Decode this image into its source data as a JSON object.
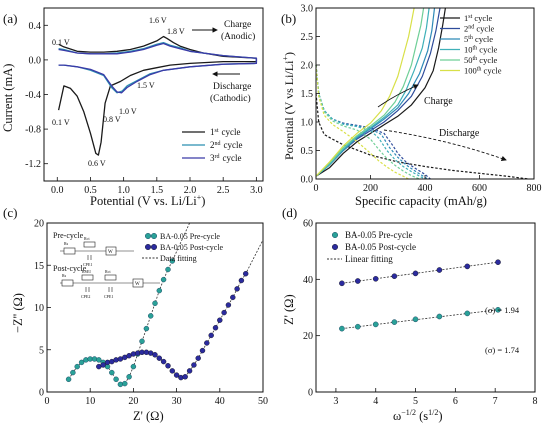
{
  "chart_data": [
    {
      "panel_label": "(a)",
      "type": "line",
      "xlabel": "Potential (V vs. Li/Li+)",
      "ylabel": "Current (mA)",
      "xlim": [
        -0.2,
        3.1
      ],
      "ylim": [
        -1.4,
        0.6
      ],
      "xticks": [
        "0.0",
        "0.5",
        "1.0",
        "1.5",
        "2.0",
        "2.5",
        "3.0"
      ],
      "yticks": [
        "0.4",
        "0.0",
        "-0.4",
        "-0.8",
        "-1.2"
      ],
      "legend": "bottom-right",
      "grid": false,
      "series": [
        {
          "name": "1st cycle",
          "color": "#1a1a1a",
          "x": [
            0.02,
            0.1,
            0.2,
            0.3,
            0.4,
            0.5,
            0.58,
            0.62,
            0.66,
            0.72,
            0.8,
            0.95,
            1.1,
            1.3,
            1.5,
            1.7,
            2.0,
            2.5,
            3.0,
            3.0,
            2.5,
            2.2,
            2.0,
            1.85,
            1.75,
            1.65,
            1.6,
            1.5,
            1.3,
            1.1,
            0.9,
            0.7,
            0.5,
            0.3,
            0.1,
            0.02
          ],
          "y": [
            -0.58,
            -0.3,
            -0.33,
            -0.42,
            -0.6,
            -0.85,
            -1.08,
            -1.1,
            -0.95,
            -0.5,
            -0.3,
            -0.25,
            -0.18,
            -0.12,
            -0.09,
            -0.06,
            -0.04,
            -0.02,
            -0.02,
            0.02,
            0.04,
            0.08,
            0.12,
            0.16,
            0.2,
            0.25,
            0.27,
            0.22,
            0.16,
            0.12,
            0.1,
            0.09,
            0.09,
            0.1,
            0.15,
            0.18
          ]
        },
        {
          "name": "2nd cycle",
          "color": "#2a8fb0",
          "x": [
            0.02,
            0.1,
            0.3,
            0.5,
            0.7,
            0.82,
            0.9,
            0.98,
            1.05,
            1.2,
            1.4,
            1.6,
            2.0,
            2.5,
            3.0,
            3.0,
            2.5,
            2.0,
            1.85,
            1.7,
            1.6,
            1.5,
            1.3,
            1.1,
            0.9,
            0.7,
            0.5,
            0.3,
            0.1,
            0.02
          ],
          "y": [
            -0.06,
            -0.06,
            -0.08,
            -0.12,
            -0.18,
            -0.32,
            -0.38,
            -0.36,
            -0.3,
            -0.24,
            -0.16,
            -0.12,
            -0.08,
            -0.05,
            -0.04,
            0.02,
            0.05,
            0.1,
            0.14,
            0.17,
            0.2,
            0.18,
            0.13,
            0.1,
            0.08,
            0.07,
            0.07,
            0.08,
            0.12,
            0.13
          ]
        },
        {
          "name": "3rd cycle",
          "color": "#3b3aa8",
          "x": [
            0.02,
            0.1,
            0.3,
            0.5,
            0.7,
            0.82,
            0.9,
            0.97,
            1.05,
            1.2,
            1.4,
            1.6,
            2.0,
            2.5,
            3.0,
            3.0,
            2.5,
            2.0,
            1.85,
            1.7,
            1.6,
            1.5,
            1.3,
            1.1,
            0.9,
            0.7,
            0.5,
            0.3,
            0.1,
            0.02
          ],
          "y": [
            -0.06,
            -0.06,
            -0.08,
            -0.11,
            -0.17,
            -0.3,
            -0.37,
            -0.38,
            -0.32,
            -0.25,
            -0.17,
            -0.12,
            -0.08,
            -0.05,
            -0.04,
            0.02,
            0.05,
            0.1,
            0.13,
            0.16,
            0.19,
            0.17,
            0.12,
            0.09,
            0.07,
            0.07,
            0.07,
            0.08,
            0.11,
            0.12
          ]
        }
      ],
      "annotations": [
        "0.1 V",
        "1.6 V",
        "1.8 V",
        "0.1 V",
        "0.6 V",
        "0.8 V",
        "1.0 V",
        "1.5 V",
        "Charge",
        "(Anodic)",
        "Discharge",
        "(Cathodic)"
      ]
    },
    {
      "panel_label": "(b)",
      "type": "line",
      "xlabel": "Specific capacity (mAh/g)",
      "ylabel": "Potential (V vs Li/Li+)",
      "xlim": [
        0,
        800
      ],
      "ylim": [
        0,
        3.0
      ],
      "xticks": [
        "0",
        "200",
        "400",
        "600",
        "800"
      ],
      "yticks": [
        "0.0",
        "0.5",
        "1.0",
        "1.5",
        "2.0",
        "2.5",
        "3.0"
      ],
      "legend": "top-right",
      "grid": false,
      "series": [
        {
          "name": "1st cycle",
          "color": "#1a1a1a",
          "charge": {
            "x": [
              0,
              50,
              100,
              150,
              200,
              250,
              300,
              350,
              400,
              430,
              450,
              465,
              475
            ],
            "y": [
              0.05,
              0.2,
              0.45,
              0.65,
              0.8,
              0.95,
              1.1,
              1.3,
              1.6,
              1.9,
              2.3,
              2.7,
              3.0
            ]
          },
          "discharge": {
            "x": [
              0,
              10,
              30,
              60,
              100,
              200,
              300,
              400,
              500,
              600,
              700,
              780
            ],
            "y": [
              1.5,
              1.0,
              0.78,
              0.7,
              0.6,
              0.42,
              0.3,
              0.22,
              0.15,
              0.1,
              0.05,
              0.0
            ]
          }
        },
        {
          "name": "2nd cycle",
          "color": "#2e4b9b",
          "charge": {
            "x": [
              0,
              50,
              100,
              150,
              200,
              250,
              300,
              350,
              390,
              420,
              440,
              455
            ],
            "y": [
              0.05,
              0.25,
              0.5,
              0.7,
              0.85,
              1.0,
              1.2,
              1.45,
              1.8,
              2.2,
              2.6,
              3.0
            ]
          },
          "discharge": {
            "x": [
              0,
              10,
              30,
              60,
              100,
              150,
              200,
              250,
              280,
              300,
              330,
              360,
              400,
              420
            ],
            "y": [
              2.0,
              1.5,
              1.2,
              1.05,
              0.98,
              0.94,
              0.9,
              0.8,
              0.6,
              0.45,
              0.3,
              0.2,
              0.08,
              0.0
            ]
          }
        },
        {
          "name": "5th cycle",
          "color": "#2f8ab8",
          "charge": {
            "x": [
              0,
              50,
              100,
              150,
              200,
              250,
              300,
              340,
              380,
              410,
              425,
              435
            ],
            "y": [
              0.05,
              0.25,
              0.5,
              0.72,
              0.88,
              1.05,
              1.25,
              1.5,
              1.85,
              2.25,
              2.6,
              3.0
            ]
          },
          "discharge": {
            "x": [
              0,
              10,
              30,
              60,
              100,
              150,
              200,
              240,
              270,
              300,
              330,
              360,
              390,
              410
            ],
            "y": [
              2.0,
              1.5,
              1.2,
              1.05,
              0.97,
              0.93,
              0.88,
              0.78,
              0.55,
              0.38,
              0.25,
              0.15,
              0.06,
              0.0
            ]
          }
        },
        {
          "name": "10th cycle",
          "color": "#3fb0b8",
          "charge": {
            "x": [
              0,
              50,
              100,
              150,
              200,
              250,
              300,
              330,
              360,
              390,
              405,
              415
            ],
            "y": [
              0.05,
              0.25,
              0.52,
              0.74,
              0.9,
              1.08,
              1.3,
              1.55,
              1.9,
              2.3,
              2.65,
              3.0
            ]
          },
          "discharge": {
            "x": [
              0,
              10,
              30,
              60,
              100,
              150,
              200,
              230,
              260,
              290,
              320,
              350,
              380,
              400
            ],
            "y": [
              2.0,
              1.5,
              1.2,
              1.05,
              0.96,
              0.92,
              0.85,
              0.72,
              0.5,
              0.34,
              0.22,
              0.13,
              0.05,
              0.0
            ]
          }
        },
        {
          "name": "50th cycle",
          "color": "#6fcf97",
          "charge": {
            "x": [
              0,
              50,
              100,
              150,
              200,
              250,
              290,
              320,
              350,
              370,
              385,
              395
            ],
            "y": [
              0.05,
              0.28,
              0.55,
              0.76,
              0.93,
              1.12,
              1.35,
              1.62,
              2.0,
              2.4,
              2.7,
              3.0
            ]
          },
          "discharge": {
            "x": [
              0,
              10,
              30,
              60,
              100,
              150,
              200,
              230,
              260,
              290,
              320,
              350,
              380
            ],
            "y": [
              2.0,
              1.5,
              1.18,
              1.02,
              0.93,
              0.86,
              0.7,
              0.52,
              0.36,
              0.24,
              0.14,
              0.06,
              0.0
            ]
          }
        },
        {
          "name": "100th cycle",
          "color": "#d8e048",
          "charge": {
            "x": [
              0,
              50,
              100,
              150,
              200,
              240,
              270,
              300,
              320,
              340,
              350,
              360
            ],
            "y": [
              0.05,
              0.3,
              0.58,
              0.8,
              0.98,
              1.2,
              1.45,
              1.8,
              2.15,
              2.5,
              2.75,
              3.0
            ]
          },
          "discharge": {
            "x": [
              0,
              10,
              30,
              60,
              100,
              150,
              200,
              230,
              260,
              290,
              320,
              340
            ],
            "y": [
              2.0,
              1.45,
              1.12,
              0.96,
              0.83,
              0.66,
              0.45,
              0.32,
              0.21,
              0.12,
              0.05,
              0.0
            ]
          }
        }
      ],
      "annotations": [
        "Charge",
        "Discharge"
      ]
    },
    {
      "panel_label": "(c)",
      "type": "scatter",
      "xlabel": "Z' (Ω)",
      "ylabel": "−Z'' (Ω)",
      "xlim": [
        0,
        50
      ],
      "ylim": [
        0,
        20
      ],
      "xticks": [
        "0",
        "10",
        "20",
        "30",
        "40",
        "50"
      ],
      "yticks": [
        "0",
        "5",
        "10",
        "15",
        "20"
      ],
      "legend": "top-right",
      "grid": false,
      "series": [
        {
          "name": "BA-0.05 Pre-cycle",
          "color": "#2aa198",
          "x": [
            5,
            6,
            7,
            8,
            9,
            10,
            11,
            12,
            13,
            14,
            15,
            16,
            17,
            18,
            19,
            20,
            21,
            22,
            23,
            24,
            25,
            26,
            27,
            28,
            29
          ],
          "y": [
            1.5,
            2.3,
            3.0,
            3.5,
            3.8,
            3.9,
            3.9,
            3.8,
            3.5,
            3.0,
            2.3,
            1.5,
            0.9,
            1.0,
            1.8,
            3.0,
            4.5,
            6.0,
            7.5,
            9.0,
            10.5,
            12.0,
            13.3,
            14.5,
            15.5
          ]
        },
        {
          "name": "BA-0.05 Post-cycle",
          "color": "#2b2b9e",
          "x": [
            12,
            13,
            14,
            15,
            16,
            17,
            18,
            19,
            20,
            21,
            22,
            23,
            24,
            25,
            26,
            27,
            28,
            29,
            30,
            31,
            32,
            33,
            34,
            35,
            36,
            37,
            38,
            39,
            40,
            41,
            42,
            43,
            44,
            45,
            46
          ],
          "y": [
            3.0,
            3.2,
            3.5,
            3.6,
            3.8,
            3.9,
            4.1,
            4.3,
            4.5,
            4.6,
            4.7,
            4.7,
            4.6,
            4.4,
            4.0,
            3.6,
            3.1,
            2.5,
            2.0,
            1.7,
            1.8,
            2.5,
            3.2,
            4.0,
            4.9,
            5.8,
            6.7,
            7.6,
            8.5,
            9.4,
            10.3,
            11.2,
            12.2,
            13.2,
            14.0
          ]
        }
      ],
      "fitting_line": {
        "name": "Data fitting",
        "color": "#333333"
      },
      "annotations": [
        "Pre-cycle",
        "Post-cycle"
      ]
    },
    {
      "panel_label": "(d)",
      "type": "scatter",
      "xlabel": "ω−1/2 (s1/2)",
      "ylabel": "Z' (Ω)",
      "xlim": [
        2.5,
        8
      ],
      "ylim": [
        0,
        60
      ],
      "xticks": [
        "3",
        "4",
        "5",
        "6",
        "7",
        "8"
      ],
      "yticks": [
        "0",
        "20",
        "40",
        "60"
      ],
      "legend": "top-left",
      "grid": false,
      "series": [
        {
          "name": "BA-0.05 Pre-cycle",
          "color": "#2aa198",
          "x": [
            3.15,
            3.55,
            4.0,
            4.47,
            5.0,
            5.6,
            6.3,
            7.07
          ],
          "y": [
            22.5,
            23.2,
            24.0,
            24.8,
            25.8,
            26.8,
            27.9,
            29.2
          ]
        },
        {
          "name": "BA-0.05 Post-cycle",
          "color": "#2b2b9e",
          "x": [
            3.15,
            3.55,
            4.0,
            4.47,
            5.0,
            5.6,
            6.3,
            7.07
          ],
          "y": [
            38.6,
            39.4,
            40.2,
            41.1,
            42.1,
            43.3,
            44.6,
            46.1
          ]
        }
      ],
      "fitting_line": {
        "name": "Linear fitting",
        "color": "#333333"
      },
      "annotations": [
        "(σ) = 1.94",
        "(σ) = 1.74"
      ]
    }
  ],
  "labels": {
    "a": {
      "panel": "(a)",
      "xlabel": "Potential (V vs. Li/Li",
      "xlabel_sup": "+",
      "xlabel_end": ")",
      "ylabel": "Current (mA)",
      "charge": "Charge",
      "anodic": "(Anodic)",
      "discharge": "Discharge",
      "cathodic": "(Cathodic)",
      "v01_top": "0.1 V",
      "v16": "1.6 V",
      "v18": "1.8 V",
      "v01_bot": "0.1 V",
      "v06": "0.6 V",
      "v08": "0.8 V",
      "v10": "1.0 V",
      "v15": "1.5 V",
      "leg1": "1",
      "leg1_sup": "st",
      "leg2": "2",
      "leg2_sup": "nd",
      "leg3": "3",
      "leg3_sup": "rd",
      "cycle": "cycle"
    },
    "b": {
      "panel": "(b)",
      "xlabel": "Specific capacity (mAh/g)",
      "ylabel": "Potential (V vs Li/Li",
      "ylabel_sup": "+",
      "ylabel_end": ")",
      "charge": "Charge",
      "discharge": "Discharge",
      "legend": [
        {
          "n": "1",
          "sup": "st",
          "rest": " cycle"
        },
        {
          "n": "2",
          "sup": "nd",
          "rest": " cycle"
        },
        {
          "n": "5",
          "sup": "th",
          "rest": " cycle"
        },
        {
          "n": "10",
          "sup": "th",
          "rest": " cycle"
        },
        {
          "n": "50",
          "sup": "th",
          "rest": " cycle"
        },
        {
          "n": "100",
          "sup": "th",
          "rest": " cycle"
        }
      ]
    },
    "c": {
      "panel": "(c)",
      "xlabel": "Z' (Ω)",
      "ylabel": "−Z'' (Ω)",
      "leg_pre": "BA-0.05 Pre-cycle",
      "leg_post": "BA-0.05 Post-cycle",
      "leg_fit": "Data fitting",
      "pre": "Pre-cycle",
      "post": "Post-cycle",
      "rs": "Rs",
      "rct": "Rct",
      "cpe1": "CPE1",
      "w": "W",
      "rsei": "RSEI",
      "cpe2": "CPE2",
      "rct2": "Rct",
      "cpe1b": "CPE1",
      "w2": "W"
    },
    "d": {
      "panel": "(d)",
      "xlabel": "ω",
      "xlabel_sup": "−1/2",
      "xlabel_mid": " (s",
      "xlabel_sup2": "1/2",
      "xlabel_end": ")",
      "ylabel": "Z' (Ω)",
      "leg_pre": "BA-0.05 Pre-cycle",
      "leg_post": "BA-0.05 Post-cycle",
      "leg_fit": "Linear fitting",
      "sig1": "(σ) = 1.94",
      "sig2": "(σ) = 1.74"
    }
  }
}
